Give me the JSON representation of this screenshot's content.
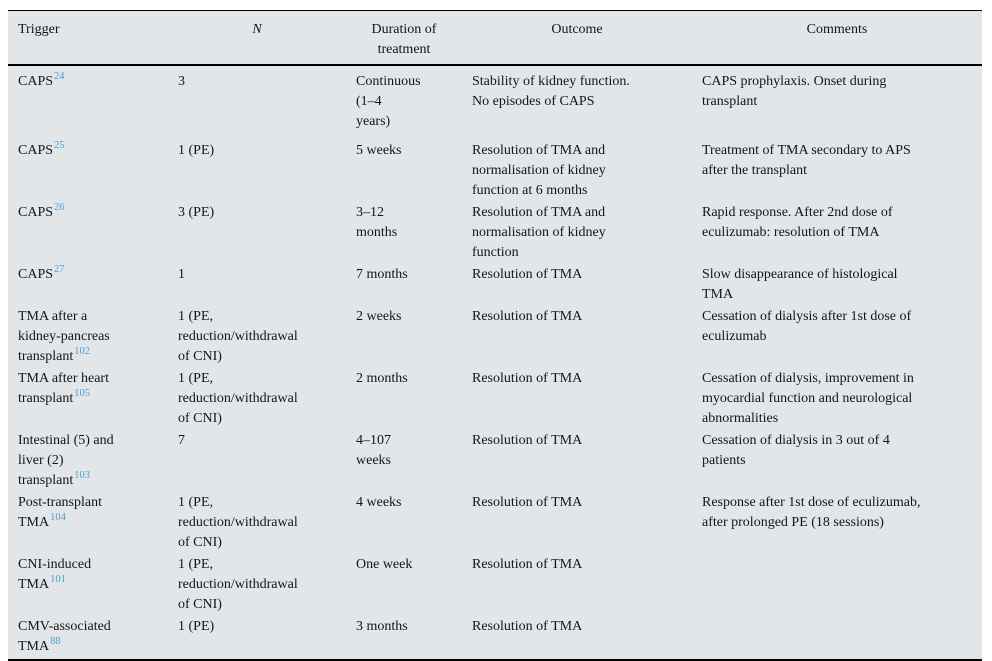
{
  "colors": {
    "table_background": "#e2e6e8",
    "rule_color": "#000000",
    "text_color": "#151515",
    "citation_link_color": "#4aa0d4"
  },
  "table": {
    "columns": [
      {
        "id": "trigger",
        "label": "Trigger"
      },
      {
        "id": "n",
        "label": "N"
      },
      {
        "id": "duration",
        "label": "Duration of treatment"
      },
      {
        "id": "outcome",
        "label": "Outcome"
      },
      {
        "id": "comments",
        "label": "Comments"
      }
    ],
    "rows": [
      {
        "trigger": {
          "lines": [
            "CAPS"
          ],
          "ref": "24"
        },
        "n": {
          "lines": [
            "3"
          ]
        },
        "duration": {
          "lines": [
            "Continuous",
            "(1–4",
            "years)"
          ]
        },
        "outcome": {
          "lines": [
            "Stability of kidney function.",
            "No episodes of CAPS"
          ]
        },
        "comments": {
          "lines": [
            "CAPS prophylaxis. Onset during",
            "transplant"
          ]
        }
      },
      {
        "trigger": {
          "lines": [
            "CAPS"
          ],
          "ref": "25"
        },
        "n": {
          "lines": [
            "1 (PE)"
          ]
        },
        "duration": {
          "lines": [
            "5 weeks"
          ]
        },
        "outcome": {
          "lines": [
            "Resolution of TMA and",
            "normalisation of kidney",
            "function at 6 months"
          ]
        },
        "comments": {
          "lines": [
            "Treatment of TMA secondary to APS",
            "after the transplant"
          ]
        }
      },
      {
        "trigger": {
          "lines": [
            "CAPS"
          ],
          "ref": "26"
        },
        "n": {
          "lines": [
            "3 (PE)"
          ]
        },
        "duration": {
          "lines": [
            "3–12",
            "months"
          ]
        },
        "outcome": {
          "lines": [
            "Resolution of TMA and",
            "normalisation of kidney",
            "function"
          ]
        },
        "comments": {
          "lines": [
            "Rapid response. After 2nd dose of",
            "eculizumab: resolution of TMA"
          ]
        }
      },
      {
        "trigger": {
          "lines": [
            "CAPS"
          ],
          "ref": "27"
        },
        "n": {
          "lines": [
            "1"
          ]
        },
        "duration": {
          "lines": [
            "7 months"
          ]
        },
        "outcome": {
          "lines": [
            "Resolution of TMA"
          ]
        },
        "comments": {
          "lines": [
            "Slow disappearance of histological",
            "TMA"
          ]
        }
      },
      {
        "trigger": {
          "lines": [
            "TMA after a",
            "kidney-pancreas",
            "transplant"
          ],
          "ref": "102"
        },
        "n": {
          "lines": [
            "1 (PE,",
            "reduction/withdrawal",
            "of CNI)"
          ]
        },
        "duration": {
          "lines": [
            "2 weeks"
          ]
        },
        "outcome": {
          "lines": [
            "Resolution of TMA"
          ]
        },
        "comments": {
          "lines": [
            "Cessation of dialysis after 1st dose of",
            "eculizumab"
          ]
        }
      },
      {
        "trigger": {
          "lines": [
            "TMA after heart",
            "transplant"
          ],
          "ref": "105"
        },
        "n": {
          "lines": [
            "1 (PE,",
            "reduction/withdrawal",
            "of CNI)"
          ]
        },
        "duration": {
          "lines": [
            "2 months"
          ]
        },
        "outcome": {
          "lines": [
            "Resolution of TMA"
          ]
        },
        "comments": {
          "lines": [
            "Cessation of dialysis, improvement in",
            "myocardial function and neurological",
            "abnormalities"
          ]
        }
      },
      {
        "trigger": {
          "lines": [
            "Intestinal (5) and",
            "liver (2)",
            "transplant"
          ],
          "ref": "103"
        },
        "n": {
          "lines": [
            "7"
          ]
        },
        "duration": {
          "lines": [
            "4–107",
            "weeks"
          ]
        },
        "outcome": {
          "lines": [
            "Resolution of TMA"
          ]
        },
        "comments": {
          "lines": [
            "Cessation of dialysis in 3 out of 4",
            "patients"
          ]
        }
      },
      {
        "trigger": {
          "lines": [
            "Post-transplant",
            "TMA"
          ],
          "ref": "104"
        },
        "n": {
          "lines": [
            "1 (PE,",
            "reduction/withdrawal",
            "of CNI)"
          ]
        },
        "duration": {
          "lines": [
            "4 weeks"
          ]
        },
        "outcome": {
          "lines": [
            "Resolution of TMA"
          ]
        },
        "comments": {
          "lines": [
            "Response after 1st dose of eculizumab,",
            "after prolonged PE (18 sessions)"
          ]
        }
      },
      {
        "trigger": {
          "lines": [
            "CNI-induced",
            "TMA"
          ],
          "ref": "101"
        },
        "n": {
          "lines": [
            "1 (PE,",
            "reduction/withdrawal",
            "of CNI)"
          ]
        },
        "duration": {
          "lines": [
            "One week"
          ]
        },
        "outcome": {
          "lines": [
            "Resolution of TMA"
          ]
        },
        "comments": {
          "lines": []
        }
      },
      {
        "trigger": {
          "lines": [
            "CMV-associated",
            "TMA"
          ],
          "ref": "88"
        },
        "n": {
          "lines": [
            "1 (PE)"
          ]
        },
        "duration": {
          "lines": [
            "3 months"
          ]
        },
        "outcome": {
          "lines": [
            "Resolution of TMA"
          ]
        },
        "comments": {
          "lines": []
        }
      }
    ]
  }
}
